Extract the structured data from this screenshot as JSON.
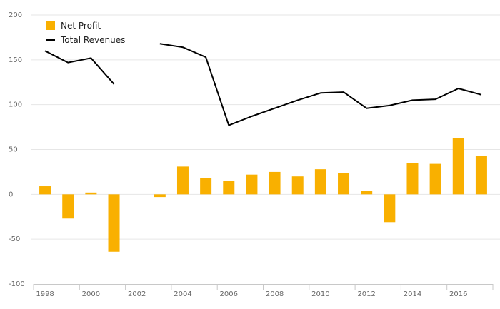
{
  "chart_data": {
    "type": "bar+line",
    "title": "",
    "xlabel": "",
    "ylabel": "",
    "ylim": [
      -100,
      200
    ],
    "yticks": [
      -100,
      -50,
      0,
      50,
      100,
      150,
      200
    ],
    "ytick_labels": [
      "-100",
      "-50",
      "0",
      "50",
      "100",
      "150",
      "200"
    ],
    "xtick_labels": [
      "1998",
      "2000",
      "2002",
      "2004",
      "2006",
      "2008",
      "2010",
      "2012",
      "2014",
      "2016"
    ],
    "x": [
      1998,
      1999,
      2000,
      2001,
      2002,
      2003,
      2004,
      2005,
      2006,
      2007,
      2008,
      2009,
      2010,
      2011,
      2012,
      2013,
      2014,
      2015,
      2016,
      2017
    ],
    "grid": true,
    "legend_position": "top-left",
    "series": [
      {
        "name": "Net Profit",
        "kind": "bar",
        "color": "#f9b000",
        "values": [
          9,
          -27,
          2,
          -64,
          0,
          -3,
          31,
          18,
          15,
          22,
          25,
          20,
          28,
          24,
          4,
          -31,
          35,
          34,
          63,
          43
        ]
      },
      {
        "name": "Total Revenues",
        "kind": "line",
        "color": "#000000",
        "values": [
          160,
          147,
          152,
          123,
          null,
          168,
          164,
          153,
          77,
          87,
          96,
          105,
          113,
          114,
          96,
          99,
          105,
          106,
          118,
          111
        ]
      }
    ]
  }
}
